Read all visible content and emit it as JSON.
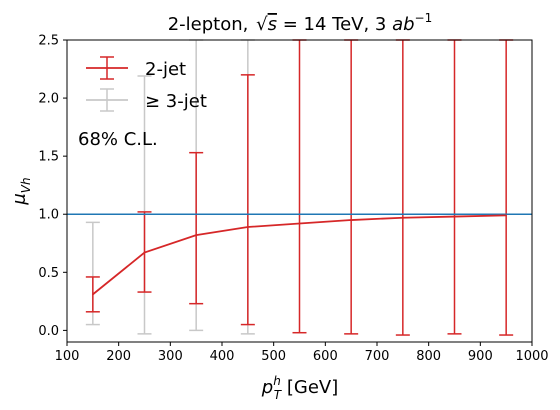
{
  "chart_data": {
    "type": "line",
    "title_main": "2-lepton, ",
    "title_sqrt": "s",
    "title_eq": " = 14 TeV, 3 ",
    "title_ab": "ab",
    "title_exp": "−1",
    "xlabel_p": "p",
    "xlabel_sup": "h",
    "xlabel_sub": "T",
    "xlabel_rest": " [GeV]",
    "ylabel_mu": "μ",
    "ylabel_sub": "Vh",
    "xlim": [
      100,
      1000
    ],
    "ylim": [
      -0.1,
      2.5
    ],
    "xticks": [
      "100",
      "200",
      "300",
      "400",
      "500",
      "600",
      "700",
      "800",
      "900",
      "1000"
    ],
    "yticks": [
      "0.0",
      "0.5",
      "1.0",
      "1.5",
      "2.0",
      "2.5"
    ],
    "annotation": "68% C.L.",
    "reference_line": {
      "y": 1.0,
      "color": "#1f77b4"
    },
    "series": [
      {
        "name": "≥ 3-jet",
        "color": "#c8c8c8",
        "x": [
          150,
          250,
          350,
          450
        ],
        "lower": [
          0.05,
          -0.03,
          0.0,
          -0.03
        ],
        "upper": [
          0.93,
          2.19,
          2.5,
          2.5
        ]
      },
      {
        "name": "2-jet",
        "color": "#d62728",
        "x": [
          150,
          250,
          350,
          450,
          550,
          650,
          750,
          850,
          950
        ],
        "values": [
          0.31,
          0.67,
          0.82,
          0.89,
          0.92,
          0.95,
          0.97,
          0.98,
          0.99
        ],
        "lower": [
          0.16,
          0.33,
          0.23,
          0.05,
          -0.02,
          -0.03,
          -0.04,
          -0.03,
          -0.04
        ],
        "upper": [
          0.46,
          1.02,
          1.53,
          2.2,
          2.5,
          2.5,
          2.5,
          2.5,
          2.5
        ]
      }
    ]
  }
}
